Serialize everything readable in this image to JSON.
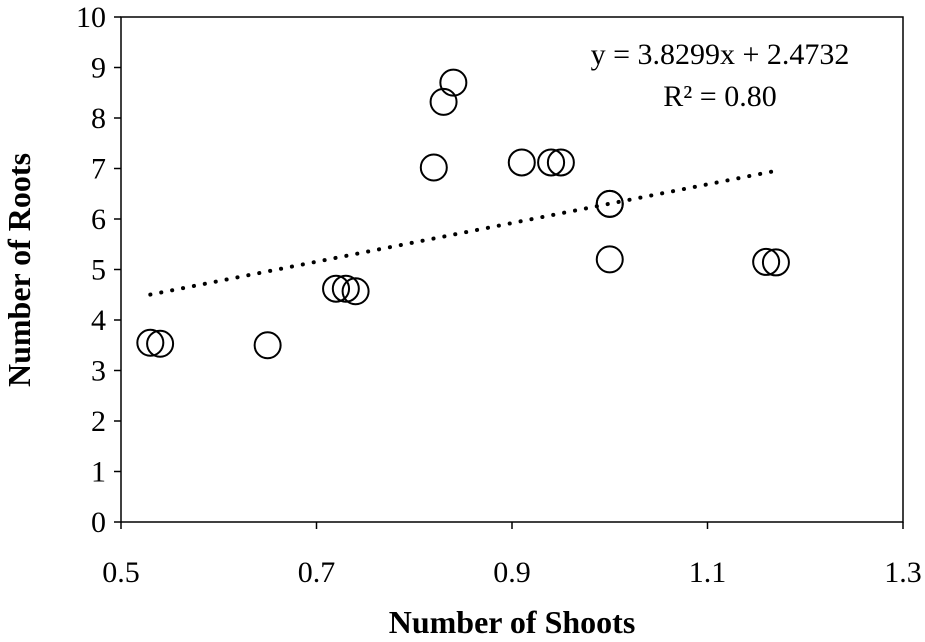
{
  "chart_data": {
    "type": "scatter",
    "xlabel": "Number of Shoots",
    "ylabel": "Number of Roots",
    "xlim": [
      0.5,
      1.3
    ],
    "ylim": [
      0,
      10
    ],
    "x_ticks": [
      "0.5",
      "0.7",
      "0.9",
      "1.1",
      "1.3"
    ],
    "y_ticks": [
      "0",
      "1",
      "2",
      "3",
      "4",
      "5",
      "6",
      "7",
      "8",
      "9",
      "10"
    ],
    "grid": false,
    "series": [
      {
        "points": [
          {
            "x": 0.53,
            "y": 3.55
          },
          {
            "x": 0.54,
            "y": 3.53
          },
          {
            "x": 0.65,
            "y": 3.5
          },
          {
            "x": 0.72,
            "y": 4.62
          },
          {
            "x": 0.73,
            "y": 4.62
          },
          {
            "x": 0.74,
            "y": 4.57
          },
          {
            "x": 0.82,
            "y": 7.02
          },
          {
            "x": 0.83,
            "y": 8.32
          },
          {
            "x": 0.84,
            "y": 8.7
          },
          {
            "x": 0.91,
            "y": 7.12
          },
          {
            "x": 0.94,
            "y": 7.12
          },
          {
            "x": 0.95,
            "y": 7.12
          },
          {
            "x": 1.0,
            "y": 6.3
          },
          {
            "x": 1.0,
            "y": 6.3
          },
          {
            "x": 1.0,
            "y": 5.2
          },
          {
            "x": 1.16,
            "y": 5.15
          },
          {
            "x": 1.17,
            "y": 5.14
          }
        ]
      }
    ],
    "trendline": {
      "style": "dotted",
      "slope": 3.8299,
      "intercept": 2.4732,
      "x_range": [
        0.53,
        1.17
      ]
    },
    "annotations": {
      "equation": "y = 3.8299x + 2.4732",
      "r_squared": "R² = 0.80"
    }
  }
}
